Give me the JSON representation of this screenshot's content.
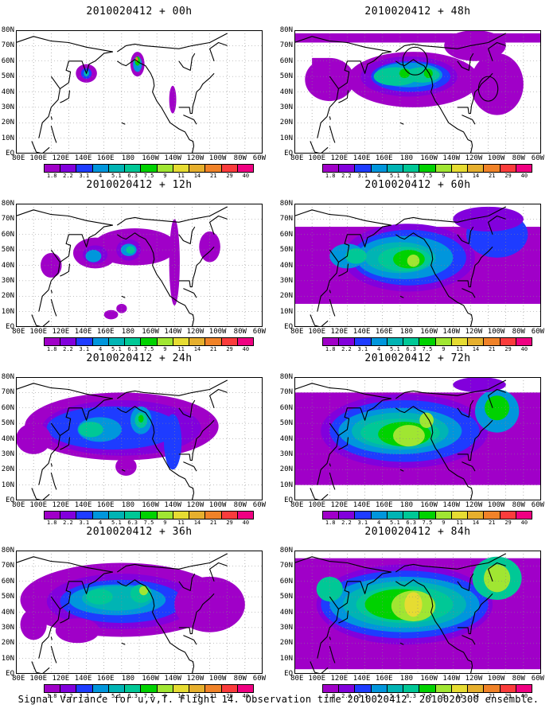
{
  "panels": [
    {
      "title": "2010020412 + 00h"
    },
    {
      "title": "2010020412 + 48h"
    },
    {
      "title": "2010020412 + 12h"
    },
    {
      "title": "2010020412 + 60h"
    },
    {
      "title": "2010020412 + 24h"
    },
    {
      "title": "2010020412 + 72h"
    },
    {
      "title": "2010020412 + 36h"
    },
    {
      "title": "2010020412 + 84h"
    }
  ],
  "lat_labels": [
    "80N",
    "70N",
    "60N",
    "50N",
    "40N",
    "30N",
    "20N",
    "10N",
    "EQ"
  ],
  "lon_labels": [
    "80E",
    "100E",
    "120E",
    "140E",
    "160E",
    "180",
    "160W",
    "140W",
    "120W",
    "100W",
    "80W",
    "60W"
  ],
  "colorbar": {
    "colors": [
      "#a000c8",
      "#8200dc",
      "#1e3cff",
      "#0096dc",
      "#00b4b4",
      "#00c896",
      "#00d200",
      "#a0e632",
      "#e6dc32",
      "#e6af2d",
      "#f08228",
      "#fa3c3c",
      "#f00082"
    ],
    "labels": [
      "1.8",
      "2.2",
      "3.1",
      "4",
      "5.1",
      "6.3",
      "7.5",
      "9",
      "11",
      "14",
      "21",
      "29",
      "40"
    ]
  },
  "caption": "Signal Variance for u,v,T. Flight 14. Observation time 2010020412. 2010020300 ensemble."
}
